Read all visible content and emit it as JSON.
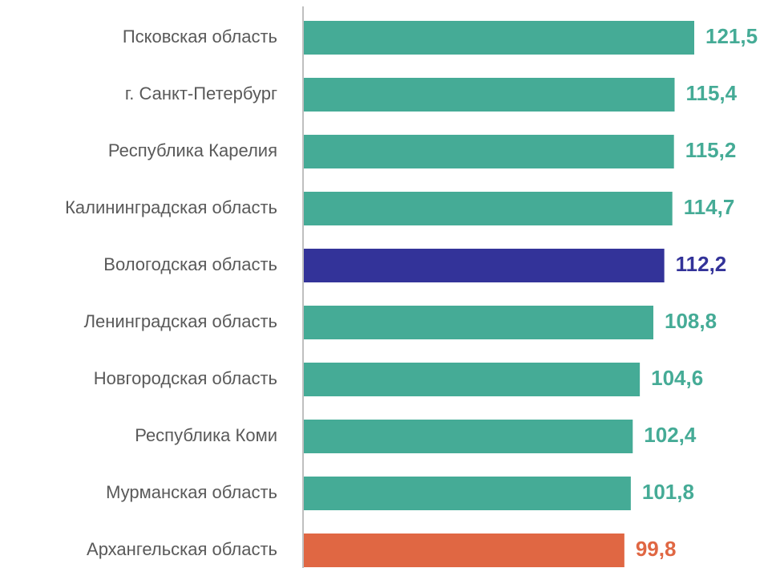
{
  "chart_data": {
    "type": "bar",
    "orientation": "horizontal",
    "title": "",
    "xlabel": "",
    "ylabel": "",
    "categories": [
      "Псковская область",
      "г. Санкт-Петербург",
      "Республика Карелия",
      "Калининградская область",
      "Вологодская область",
      "Ленинградская область",
      "Новгородская область",
      "Республика Коми",
      "Мурманская область",
      "Архангельская область"
    ],
    "values": [
      121.5,
      115.4,
      115.2,
      114.7,
      112.2,
      108.8,
      104.6,
      102.4,
      101.8,
      99.8
    ],
    "value_labels": [
      "121,5",
      "115,4",
      "115,2",
      "114,7",
      "112,2",
      "108,8",
      "104,6",
      "102,4",
      "101,8",
      "99,8"
    ],
    "bar_colors": [
      "#45ab96",
      "#45ab96",
      "#45ab96",
      "#45ab96",
      "#333399",
      "#45ab96",
      "#45ab96",
      "#45ab96",
      "#45ab96",
      "#e06743"
    ],
    "label_colors": [
      "#45ab96",
      "#45ab96",
      "#45ab96",
      "#45ab96",
      "#333399",
      "#45ab96",
      "#45ab96",
      "#45ab96",
      "#45ab96",
      "#e06743"
    ],
    "axis_color": "#bfbfbf",
    "category_label_color": "#595959",
    "grid": false,
    "legend": "none"
  }
}
